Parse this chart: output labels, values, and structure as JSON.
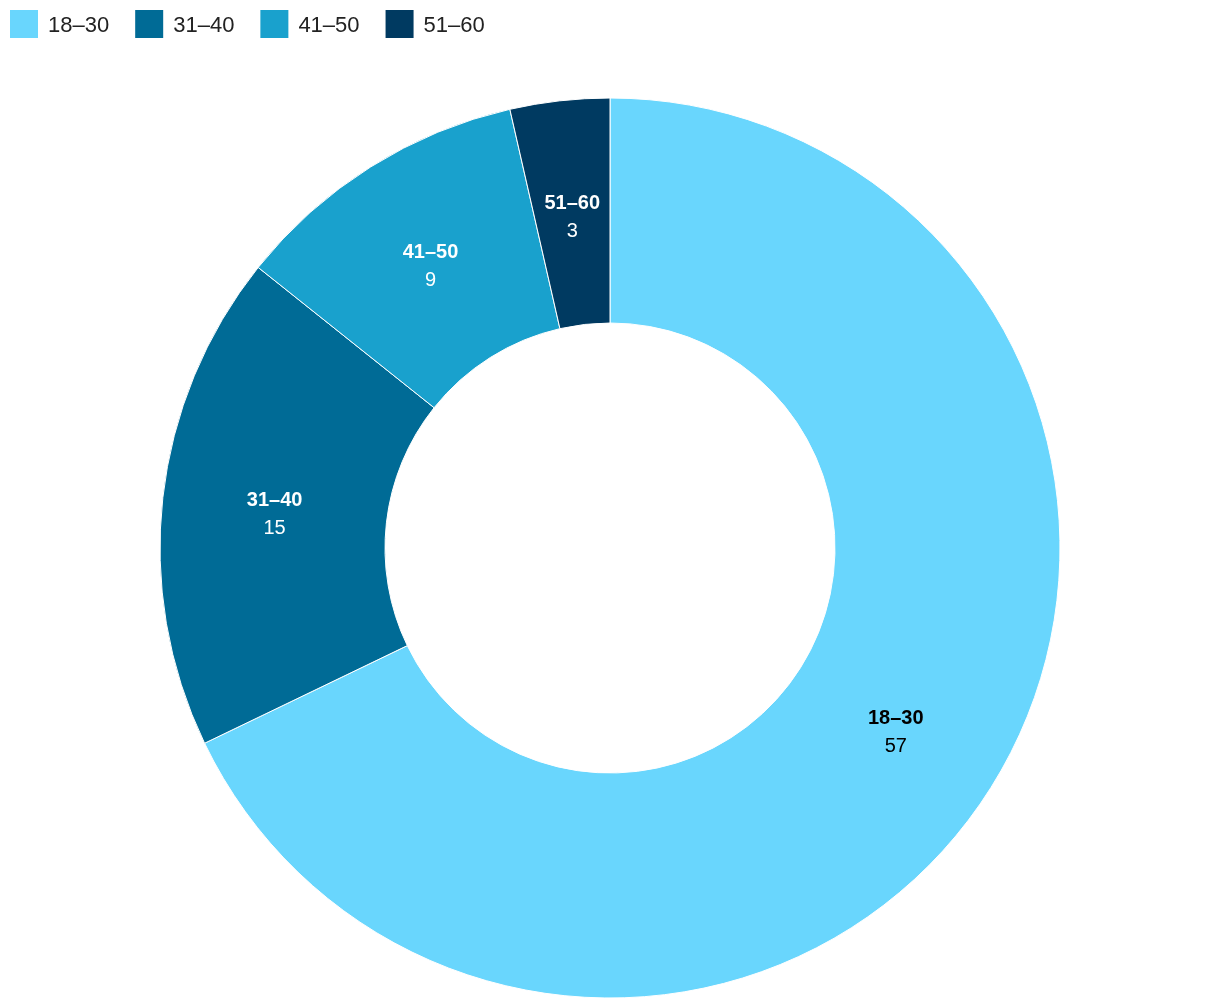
{
  "chart_data": {
    "type": "donut",
    "categories": [
      "18–30",
      "31–40",
      "41–50",
      "51–60"
    ],
    "values": [
      57,
      15,
      9,
      3
    ],
    "colors": [
      "#69d6fd",
      "#006b96",
      "#19a1cd",
      "#003a61"
    ],
    "data_labels": true,
    "legend": "top left"
  }
}
